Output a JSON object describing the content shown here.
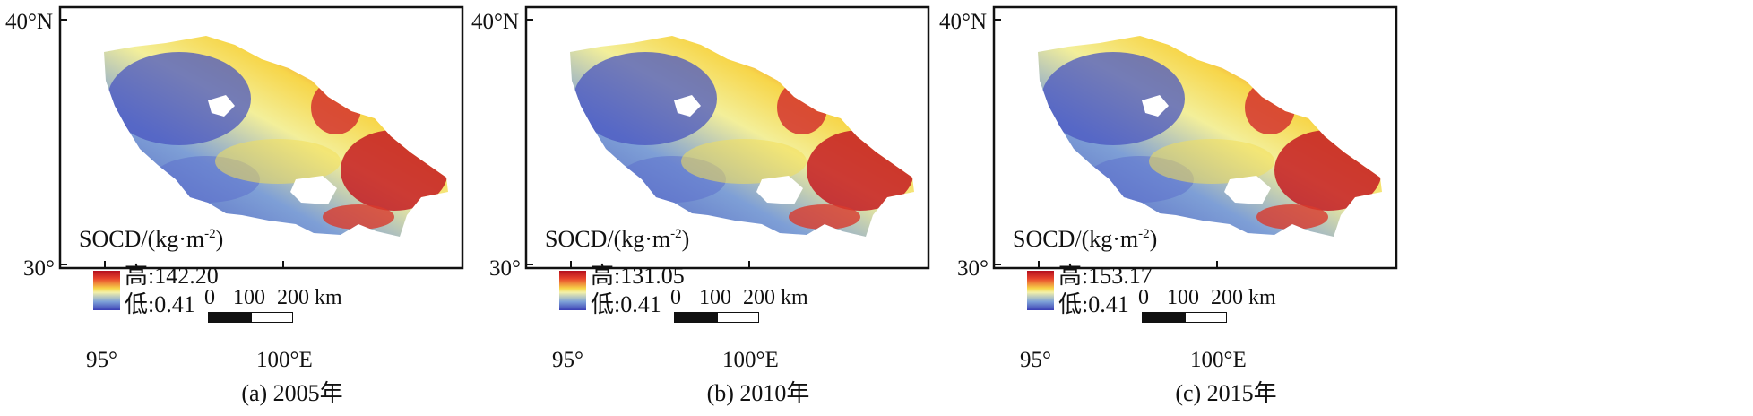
{
  "panels": [
    {
      "caption": "(a) 2005年",
      "lat_top": "40°N",
      "lat_bottom": "30°",
      "lon_left": "95°",
      "lon_right": "100°E",
      "legend": {
        "title": "SOCD/(kg·m",
        "title_sup": "-2",
        "title_end": ")",
        "high": "高:142.20",
        "low": "低:0.41"
      },
      "scalebar": {
        "label_0": "0",
        "label_100": "100",
        "label_200": "200 km"
      }
    },
    {
      "caption": "(b) 2010年",
      "lat_top": "40°N",
      "lat_bottom": "30°",
      "lon_left": "95°",
      "lon_right": "100°E",
      "legend": {
        "title": "SOCD/(kg·m",
        "title_sup": "-2",
        "title_end": ")",
        "high": "高:131.05",
        "low": "低:0.41"
      },
      "scalebar": {
        "label_0": "0",
        "label_100": "100",
        "label_200": "200 km"
      }
    },
    {
      "caption": "(c) 2015年",
      "lat_top": "40°N",
      "lat_bottom": "30°",
      "lon_left": "95°",
      "lon_right": "100°E",
      "legend": {
        "title": "SOCD/(kg·m",
        "title_sup": "-2",
        "title_end": ")",
        "high": "高:153.17",
        "low": "低:0.41"
      },
      "scalebar": {
        "label_0": "0",
        "label_100": "100",
        "label_200": "200 km"
      }
    }
  ],
  "colors": {
    "high": "#b40f1e",
    "mid": "#f7d64a",
    "low": "#3a3fb5",
    "frame": "#111111"
  }
}
